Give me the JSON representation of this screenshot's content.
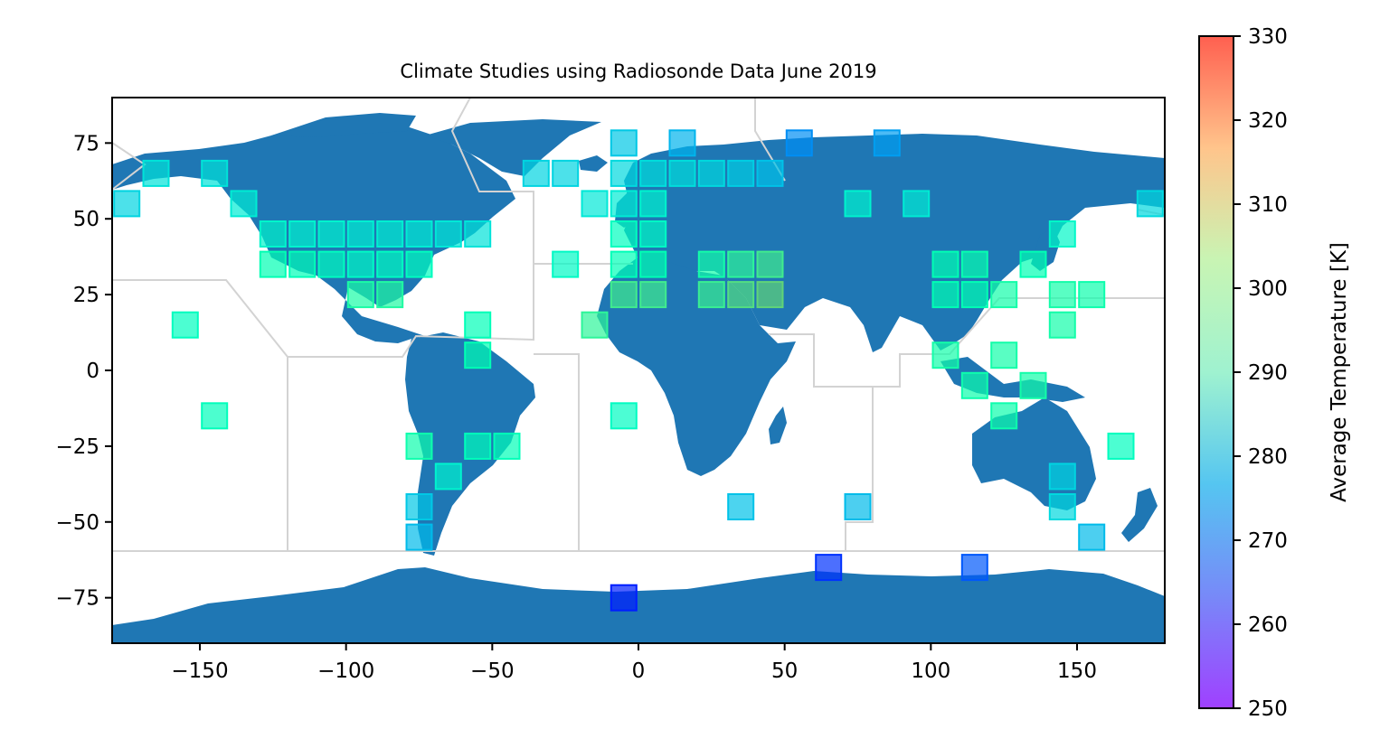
{
  "chart_data": {
    "type": "scatter",
    "title": "Climate Studies using Radiosonde Data June 2019",
    "xlabel": "",
    "ylabel": "",
    "xlim": [
      -180,
      180
    ],
    "ylim": [
      -90,
      90
    ],
    "xticks": [
      -150,
      -100,
      -50,
      0,
      50,
      100,
      150
    ],
    "yticks": [
      -75,
      -50,
      -25,
      0,
      25,
      50,
      75
    ],
    "xtick_labels": [
      "−150",
      "−100",
      "−50",
      "0",
      "50",
      "100",
      "150"
    ],
    "ytick_labels": [
      "−75",
      "−50",
      "−25",
      "0",
      "25",
      "50",
      "75"
    ],
    "marker": "square",
    "colormap": "rainbow",
    "colorbar": {
      "label": "Average Temperature [K]",
      "vmin": 250,
      "vmax": 330,
      "ticks": [
        250,
        260,
        270,
        280,
        290,
        300,
        310,
        320,
        330
      ],
      "tick_labels": [
        "250",
        "260",
        "270",
        "280",
        "290",
        "300",
        "310",
        "320",
        "330"
      ]
    },
    "colors": {
      "land": "#1f77b4",
      "region_lines": "#d3d3d3",
      "ocean": "#ffffff"
    },
    "points": [
      {
        "lon": -175,
        "lat": 55,
        "t": 275
      },
      {
        "lon": -165,
        "lat": 65,
        "t": 278
      },
      {
        "lon": -145,
        "lat": 65,
        "t": 278
      },
      {
        "lon": -135,
        "lat": 55,
        "t": 280
      },
      {
        "lon": -125,
        "lat": 45,
        "t": 283
      },
      {
        "lon": -115,
        "lat": 45,
        "t": 282
      },
      {
        "lon": -105,
        "lat": 45,
        "t": 282
      },
      {
        "lon": -95,
        "lat": 45,
        "t": 281
      },
      {
        "lon": -85,
        "lat": 45,
        "t": 281
      },
      {
        "lon": -75,
        "lat": 45,
        "t": 280
      },
      {
        "lon": -65,
        "lat": 45,
        "t": 279
      },
      {
        "lon": -55,
        "lat": 45,
        "t": 278
      },
      {
        "lon": -125,
        "lat": 35,
        "t": 290
      },
      {
        "lon": -115,
        "lat": 35,
        "t": 289
      },
      {
        "lon": -105,
        "lat": 35,
        "t": 287
      },
      {
        "lon": -95,
        "lat": 35,
        "t": 285
      },
      {
        "lon": -85,
        "lat": 35,
        "t": 286
      },
      {
        "lon": -75,
        "lat": 35,
        "t": 287
      },
      {
        "lon": -95,
        "lat": 25,
        "t": 294
      },
      {
        "lon": -85,
        "lat": 25,
        "t": 295
      },
      {
        "lon": -155,
        "lat": 15,
        "t": 287
      },
      {
        "lon": -55,
        "lat": 15,
        "t": 289
      },
      {
        "lon": -55,
        "lat": 5,
        "t": 290
      },
      {
        "lon": -145,
        "lat": -15,
        "t": 288
      },
      {
        "lon": -75,
        "lat": -25,
        "t": 292
      },
      {
        "lon": -55,
        "lat": -25,
        "t": 288
      },
      {
        "lon": -45,
        "lat": -25,
        "t": 289
      },
      {
        "lon": -65,
        "lat": -35,
        "t": 282
      },
      {
        "lon": -75,
        "lat": -45,
        "t": 273
      },
      {
        "lon": -75,
        "lat": -55,
        "t": 271
      },
      {
        "lon": -35,
        "lat": 65,
        "t": 275
      },
      {
        "lon": -25,
        "lat": 65,
        "t": 275
      },
      {
        "lon": -25,
        "lat": 35,
        "t": 285
      },
      {
        "lon": -15,
        "lat": 55,
        "t": 279
      },
      {
        "lon": -15,
        "lat": 15,
        "t": 297
      },
      {
        "lon": -5,
        "lat": 75,
        "t": 273
      },
      {
        "lon": 15,
        "lat": 75,
        "t": 270
      },
      {
        "lon": 55,
        "lat": 75,
        "t": 265
      },
      {
        "lon": 85,
        "lat": 75,
        "t": 267
      },
      {
        "lon": -5,
        "lat": 65,
        "t": 276
      },
      {
        "lon": 5,
        "lat": 65,
        "t": 277
      },
      {
        "lon": 15,
        "lat": 65,
        "t": 277
      },
      {
        "lon": 25,
        "lat": 65,
        "t": 276
      },
      {
        "lon": 35,
        "lat": 65,
        "t": 274
      },
      {
        "lon": 45,
        "lat": 65,
        "t": 272
      },
      {
        "lon": -5,
        "lat": 55,
        "t": 280
      },
      {
        "lon": 5,
        "lat": 55,
        "t": 282
      },
      {
        "lon": -5,
        "lat": 45,
        "t": 287
      },
      {
        "lon": 5,
        "lat": 45,
        "t": 285
      },
      {
        "lon": -5,
        "lat": 35,
        "t": 289
      },
      {
        "lon": 5,
        "lat": 35,
        "t": 290
      },
      {
        "lon": 25,
        "lat": 35,
        "t": 293
      },
      {
        "lon": 35,
        "lat": 35,
        "t": 297
      },
      {
        "lon": 45,
        "lat": 35,
        "t": 300
      },
      {
        "lon": -5,
        "lat": 25,
        "t": 300
      },
      {
        "lon": 5,
        "lat": 25,
        "t": 300
      },
      {
        "lon": 25,
        "lat": 25,
        "t": 299
      },
      {
        "lon": 35,
        "lat": 25,
        "t": 303
      },
      {
        "lon": 45,
        "lat": 25,
        "t": 305
      },
      {
        "lon": -5,
        "lat": -15,
        "t": 286
      },
      {
        "lon": 35,
        "lat": -45,
        "t": 272
      },
      {
        "lon": 75,
        "lat": -45,
        "t": 271
      },
      {
        "lon": -5,
        "lat": -75,
        "t": 253
      },
      {
        "lon": 65,
        "lat": -65,
        "t": 255
      },
      {
        "lon": 115,
        "lat": -65,
        "t": 259
      },
      {
        "lon": 75,
        "lat": 55,
        "t": 282
      },
      {
        "lon": 95,
        "lat": 55,
        "t": 280
      },
      {
        "lon": 105,
        "lat": 35,
        "t": 290
      },
      {
        "lon": 115,
        "lat": 35,
        "t": 291
      },
      {
        "lon": 135,
        "lat": 35,
        "t": 290
      },
      {
        "lon": 145,
        "lat": 45,
        "t": 284
      },
      {
        "lon": 105,
        "lat": 25,
        "t": 290
      },
      {
        "lon": 115,
        "lat": 25,
        "t": 290
      },
      {
        "lon": 125,
        "lat": 25,
        "t": 293
      },
      {
        "lon": 145,
        "lat": 25,
        "t": 293
      },
      {
        "lon": 155,
        "lat": 25,
        "t": 292
      },
      {
        "lon": 145,
        "lat": 15,
        "t": 293
      },
      {
        "lon": 105,
        "lat": 5,
        "t": 293
      },
      {
        "lon": 125,
        "lat": 5,
        "t": 293
      },
      {
        "lon": 115,
        "lat": -5,
        "t": 292
      },
      {
        "lon": 135,
        "lat": -5,
        "t": 293
      },
      {
        "lon": 125,
        "lat": -15,
        "t": 292
      },
      {
        "lon": 165,
        "lat": -25,
        "t": 287
      },
      {
        "lon": 145,
        "lat": -35,
        "t": 275
      },
      {
        "lon": 145,
        "lat": -45,
        "t": 276
      },
      {
        "lon": 155,
        "lat": -55,
        "t": 271
      },
      {
        "lon": 175,
        "lat": 55,
        "t": 276
      }
    ]
  }
}
